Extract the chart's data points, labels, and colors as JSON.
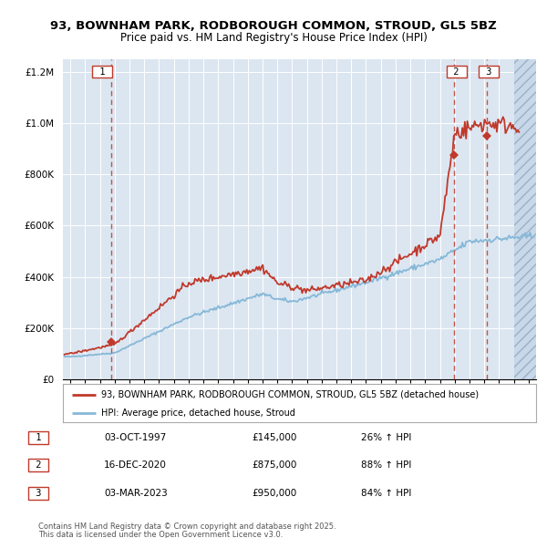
{
  "title": "93, BOWNHAM PARK, RODBOROUGH COMMON, STROUD, GL5 5BZ",
  "subtitle": "Price paid vs. HM Land Registry's House Price Index (HPI)",
  "sale_label": "93, BOWNHAM PARK, RODBOROUGH COMMON, STROUD, GL5 5BZ (detached house)",
  "hpi_label": "HPI: Average price, detached house, Stroud",
  "sales": [
    {
      "num": 1,
      "year": 1997.75,
      "price": 145000,
      "date": "03-OCT-1997",
      "pct": "26% ↑ HPI"
    },
    {
      "num": 2,
      "year": 2020.96,
      "price": 875000,
      "date": "16-DEC-2020",
      "pct": "88% ↑ HPI"
    },
    {
      "num": 3,
      "year": 2023.17,
      "price": 950000,
      "date": "03-MAR-2023",
      "pct": "84% ↑ HPI"
    }
  ],
  "footnote1": "Contains HM Land Registry data © Crown copyright and database right 2025.",
  "footnote2": "This data is licensed under the Open Government Licence v3.0.",
  "bg_color": "#dce6f1",
  "hatch_color": "#c8d8e8",
  "grid_color": "#ffffff",
  "red_color": "#c0392b",
  "blue_color": "#85b8d8",
  "ylim": [
    0,
    1250000
  ],
  "xlim_start": 1994.5,
  "xlim_end": 2026.5,
  "hatch_start": 2025.0
}
